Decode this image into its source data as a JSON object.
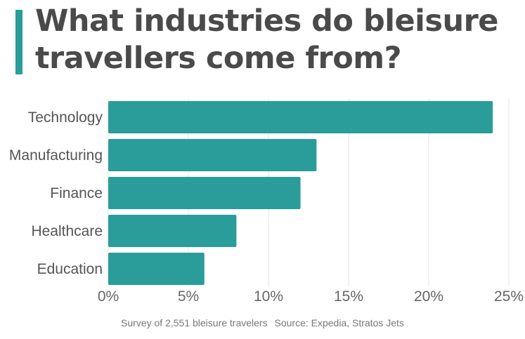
{
  "colors": {
    "bar": "#2a9d9a",
    "accent": "#2a9d9a",
    "title": "#4a4a4a",
    "grid": "#e6e6e6"
  },
  "chart_data": {
    "type": "bar",
    "orientation": "horizontal",
    "title": "What industries do bleisure travellers come from?",
    "categories": [
      "Technology",
      "Manufacturing",
      "Finance",
      "Healthcare",
      "Education"
    ],
    "values": [
      24,
      13,
      12,
      8,
      6
    ],
    "xlim": [
      0,
      25
    ],
    "xticks": [
      0,
      5,
      10,
      15,
      20,
      25
    ],
    "xtick_labels": [
      "0%",
      "5%",
      "10%",
      "15%",
      "20%",
      "25%"
    ],
    "grid": true,
    "legend": "none"
  },
  "footer": {
    "survey": "Survey of 2,551 bleisure travelers",
    "source": "Source: Expedia, Stratos Jets"
  }
}
